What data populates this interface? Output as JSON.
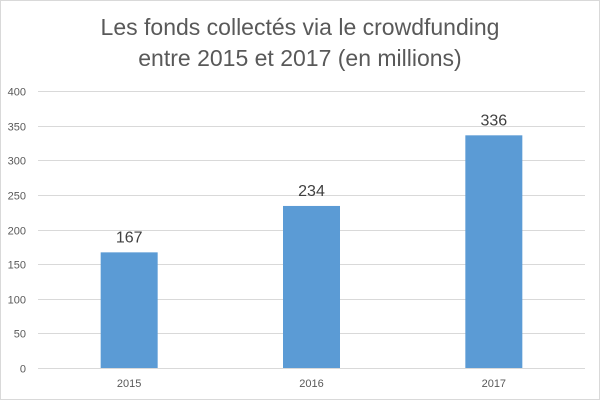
{
  "chart_data": {
    "type": "bar",
    "title_lines": [
      "Les fonds collectés via le crowdfunding",
      "entre 2015 et 2017 (en millions)"
    ],
    "categories": [
      "2015",
      "2016",
      "2017"
    ],
    "values": [
      167,
      234,
      336
    ],
    "data_labels": [
      "167",
      "234",
      "336"
    ],
    "ylim": [
      0,
      400
    ],
    "yticks": [
      0,
      50,
      100,
      150,
      200,
      250,
      300,
      350,
      400
    ],
    "xlabel": "",
    "ylabel": "",
    "grid": true,
    "legend": "none",
    "bar_color": "#5b9bd5",
    "grid_color": "#d9d9d9"
  }
}
